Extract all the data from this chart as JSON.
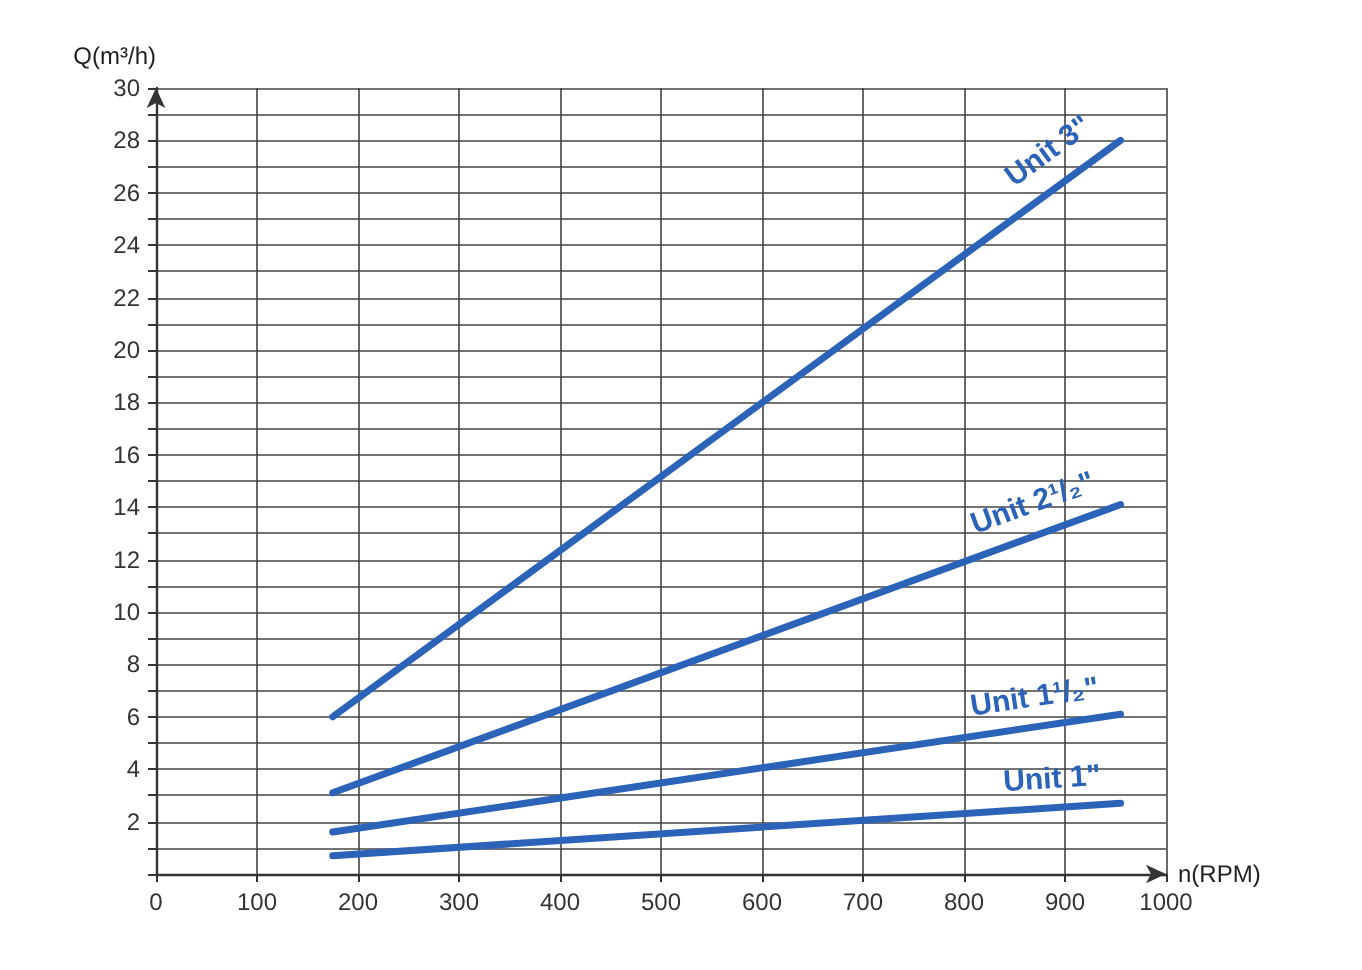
{
  "chart_data": {
    "type": "line",
    "xlabel": "n(RPM)",
    "ylabel": "Q(m³/h)",
    "xlim": [
      0,
      1000
    ],
    "xticks": [
      0,
      100,
      200,
      300,
      400,
      500,
      600,
      700,
      800,
      900,
      1000
    ],
    "ylim": [
      0,
      30
    ],
    "yticks": [
      {
        "value": 0,
        "label": null
      },
      {
        "value": 1,
        "label": null
      },
      2,
      {
        "value": 3,
        "label": null
      },
      4,
      {
        "value": 5,
        "label": null
      },
      6,
      {
        "value": 7,
        "label": null
      },
      8,
      {
        "value": 9,
        "label": null
      },
      10,
      {
        "value": 11,
        "label": null
      },
      12,
      {
        "value": 13,
        "label": null
      },
      14,
      {
        "value": 15,
        "label": null
      },
      16,
      {
        "value": 17,
        "label": null
      },
      18,
      {
        "value": 19,
        "label": null
      },
      20,
      {
        "value": 21,
        "label": null
      },
      22,
      {
        "value": 23,
        "label": null
      },
      24,
      {
        "value": 25,
        "label": null
      },
      26,
      {
        "value": 27,
        "label": null
      },
      28,
      {
        "value": 29,
        "label": null
      },
      30
    ],
    "x": [
      175,
      955
    ],
    "grid": true,
    "legend": false,
    "marker": "none",
    "line_style": "solid",
    "series": [
      {
        "name": "Unit 3\"",
        "color": "#2a63b8",
        "values": [
          6.0,
          28.0
        ]
      },
      {
        "name": "Unit 2¹/₂\"",
        "color": "#2a63b8",
        "values": [
          3.1,
          14.1
        ]
      },
      {
        "name": "Unit 1¹/₂\"",
        "color": "#2a63b8",
        "values": [
          1.6,
          6.1
        ]
      },
      {
        "name": "Unit 1\"",
        "color": "#2a63b8",
        "values": [
          0.7,
          2.7
        ]
      }
    ]
  }
}
